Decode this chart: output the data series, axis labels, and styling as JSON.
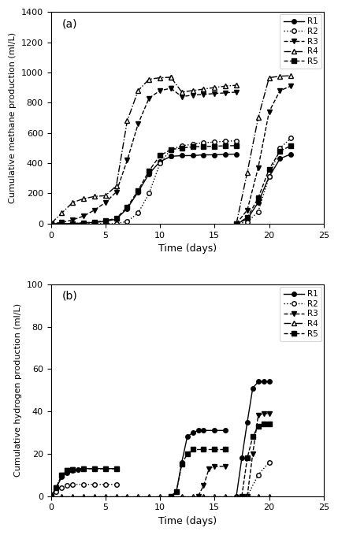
{
  "panel_a": {
    "title": "(a)",
    "ylabel": "Cumulative methane production (ml/L)",
    "xlabel": "Time (days)",
    "xlim": [
      0,
      25
    ],
    "ylim": [
      0,
      1400
    ],
    "yticks": [
      0,
      200,
      400,
      600,
      800,
      1000,
      1200,
      1400
    ],
    "xticks": [
      0,
      5,
      10,
      15,
      20,
      25
    ],
    "series": {
      "R1": {
        "linestyle": "-",
        "marker": "o",
        "mfc": "black",
        "segments": [
          {
            "x": [
              0,
              1,
              2,
              3,
              4,
              5,
              6,
              7,
              8,
              9,
              10,
              11
            ],
            "y": [
              0,
              0,
              0,
              5,
              8,
              15,
              30,
              100,
              210,
              330,
              410,
              445
            ]
          },
          {
            "x": [
              11,
              12,
              13,
              14,
              15,
              16,
              17
            ],
            "y": [
              445,
              450,
              450,
              455,
              455,
              458,
              460
            ]
          },
          {
            "x": [
              17,
              18,
              19,
              20,
              21,
              22
            ],
            "y": [
              0,
              30,
              140,
              310,
              430,
              460
            ]
          }
        ]
      },
      "R2": {
        "linestyle": ":",
        "marker": "o",
        "mfc": "white",
        "segments": [
          {
            "x": [
              0,
              1,
              2,
              3,
              4,
              5,
              6,
              7,
              8,
              9,
              10,
              11,
              12,
              13,
              14,
              15,
              16,
              17
            ],
            "y": [
              0,
              0,
              0,
              0,
              0,
              0,
              0,
              15,
              70,
              200,
              400,
              490,
              515,
              525,
              535,
              540,
              545,
              548
            ]
          },
          {
            "x": [
              17,
              18,
              19,
              20,
              21,
              22
            ],
            "y": [
              0,
              10,
              80,
              310,
              500,
              565
            ]
          }
        ]
      },
      "R3": {
        "linestyle": "--",
        "marker": "v",
        "mfc": "black",
        "segments": [
          {
            "x": [
              0,
              1,
              2,
              3,
              4,
              5,
              6,
              7,
              8,
              9,
              10,
              11
            ],
            "y": [
              0,
              8,
              25,
              50,
              90,
              140,
              210,
              420,
              660,
              830,
              880,
              895
            ]
          },
          {
            "x": [
              11,
              12,
              13,
              14,
              15,
              16,
              17
            ],
            "y": [
              895,
              840,
              850,
              855,
              860,
              865,
              870
            ]
          },
          {
            "x": [
              17,
              18,
              19,
              20,
              21,
              22
            ],
            "y": [
              0,
              90,
              370,
              740,
              880,
              910
            ]
          }
        ]
      },
      "R4": {
        "linestyle": "-.",
        "marker": "^",
        "mfc": "white",
        "segments": [
          {
            "x": [
              0,
              1,
              2,
              3,
              4,
              5,
              6,
              7,
              8,
              9,
              10,
              11
            ],
            "y": [
              0,
              70,
              140,
              165,
              180,
              185,
              250,
              680,
              880,
              955,
              965,
              968
            ]
          },
          {
            "x": [
              11,
              12,
              13,
              14,
              15,
              16,
              17
            ],
            "y": [
              968,
              870,
              880,
              890,
              900,
              910,
              915
            ]
          },
          {
            "x": [
              17,
              18,
              19,
              20,
              21,
              22
            ],
            "y": [
              0,
              340,
              700,
              965,
              975,
              978
            ]
          }
        ]
      },
      "R5": {
        "linestyle": "--",
        "marker": "s",
        "mfc": "black",
        "segments": [
          {
            "x": [
              0,
              1,
              2,
              3,
              4,
              5,
              6,
              7,
              8,
              9,
              10,
              11,
              12,
              13,
              14,
              15,
              16,
              17
            ],
            "y": [
              0,
              0,
              0,
              5,
              10,
              20,
              35,
              110,
              220,
              350,
              450,
              490,
              500,
              508,
              510,
              512,
              515,
              516
            ]
          },
          {
            "x": [
              17,
              18,
              19,
              20,
              21,
              22
            ],
            "y": [
              0,
              40,
              170,
              360,
              480,
              515
            ]
          }
        ]
      }
    }
  },
  "panel_b": {
    "title": "(b)",
    "ylabel": "Cumulative hydrogen production (ml/L)",
    "xlabel": "Time (days)",
    "xlim": [
      0,
      25
    ],
    "ylim": [
      0,
      100
    ],
    "yticks": [
      0,
      20,
      40,
      60,
      80,
      100
    ],
    "xticks": [
      0,
      5,
      10,
      15,
      20,
      25
    ],
    "series": {
      "R1": {
        "linestyle": "-",
        "marker": "o",
        "mfc": "black",
        "segments": [
          {
            "x": [
              0,
              0.5,
              1,
              1.5,
              2,
              2.5,
              3,
              4,
              5,
              6
            ],
            "y": [
              0,
              4,
              9,
              11,
              12,
              12.5,
              13,
              13,
              13,
              13
            ]
          },
          {
            "x": [
              11,
              11.5,
              12,
              12.5,
              13,
              13.5,
              14,
              15,
              16
            ],
            "y": [
              0,
              2,
              16,
              28,
              30,
              31,
              31,
              31,
              31
            ]
          },
          {
            "x": [
              17,
              17.5,
              18,
              18.5,
              19,
              19.5,
              20
            ],
            "y": [
              0,
              18,
              35,
              51,
              54,
              54,
              54
            ]
          }
        ]
      },
      "R2": {
        "linestyle": ":",
        "marker": "o",
        "mfc": "white",
        "segments": [
          {
            "x": [
              0,
              0.5,
              1,
              1.5,
              2,
              3,
              4,
              5,
              6
            ],
            "y": [
              0,
              2,
              4,
              5,
              5.5,
              5.5,
              5.5,
              5.5,
              5.5
            ]
          },
          {
            "x": [
              18,
              19,
              20
            ],
            "y": [
              0,
              10,
              16
            ]
          }
        ]
      },
      "R3": {
        "linestyle": "--",
        "marker": "v",
        "mfc": "black",
        "segments": [
          {
            "x": [
              0,
              0.5,
              1,
              1.5,
              2,
              3,
              4,
              5,
              6
            ],
            "y": [
              0,
              4,
              10,
              12,
              12.5,
              13,
              13,
              13,
              13
            ]
          },
          {
            "x": [
              13.5,
              14,
              14.5,
              15,
              16
            ],
            "y": [
              0,
              5,
              13,
              14,
              14
            ]
          },
          {
            "x": [
              18,
              18.5,
              19,
              19.5,
              20
            ],
            "y": [
              0,
              20,
              38,
              39,
              39
            ]
          }
        ]
      },
      "R4": {
        "linestyle": "-.",
        "marker": "^",
        "mfc": "white",
        "segments": [
          {
            "x": [
              0,
              1,
              2,
              3,
              4,
              5,
              6,
              7,
              8,
              9,
              10,
              11,
              12,
              13,
              14,
              15,
              16,
              17,
              18,
              19,
              20
            ],
            "y": [
              0,
              0,
              0,
              0,
              0,
              0,
              0,
              0,
              0,
              0,
              0,
              0,
              0,
              0,
              0,
              0,
              0,
              0,
              0,
              0,
              0
            ]
          }
        ]
      },
      "R5": {
        "linestyle": "--",
        "marker": "s",
        "mfc": "black",
        "segments": [
          {
            "x": [
              0,
              0.5,
              1,
              1.5,
              2,
              3,
              4,
              5,
              6
            ],
            "y": [
              0,
              4,
              10,
              12,
              12.5,
              13,
              13,
              13,
              13
            ]
          },
          {
            "x": [
              11,
              11.5,
              12,
              12.5,
              13,
              14,
              15,
              16
            ],
            "y": [
              0,
              2,
              15,
              20,
              22,
              22,
              22,
              22
            ]
          },
          {
            "x": [
              17.5,
              18,
              18.5,
              19,
              19.5,
              20
            ],
            "y": [
              0,
              18,
              28,
              33,
              34,
              34
            ]
          }
        ]
      }
    }
  }
}
